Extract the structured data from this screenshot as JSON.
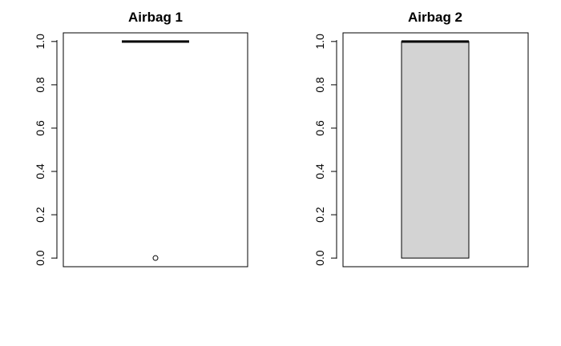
{
  "chart_data": [
    {
      "type": "boxplot",
      "title": "Airbag 1",
      "ylim": [
        -0.04,
        1.04
      ],
      "yticks": [
        "0.0",
        "0.2",
        "0.4",
        "0.6",
        "0.8",
        "1.0"
      ],
      "box": {
        "min": 1.0,
        "q1": 1.0,
        "median": 1.0,
        "q3": 1.0,
        "max": 1.0
      },
      "outliers": [
        0.0
      ],
      "box_fill": "#d3d3d3"
    },
    {
      "type": "boxplot",
      "title": "Airbag 2",
      "ylim": [
        -0.04,
        1.04
      ],
      "yticks": [
        "0.0",
        "0.2",
        "0.4",
        "0.6",
        "0.8",
        "1.0"
      ],
      "box": {
        "min": 0.0,
        "q1": 0.0,
        "median": 1.0,
        "q3": 1.0,
        "max": 1.0
      },
      "outliers": [],
      "box_fill": "#d3d3d3"
    }
  ]
}
